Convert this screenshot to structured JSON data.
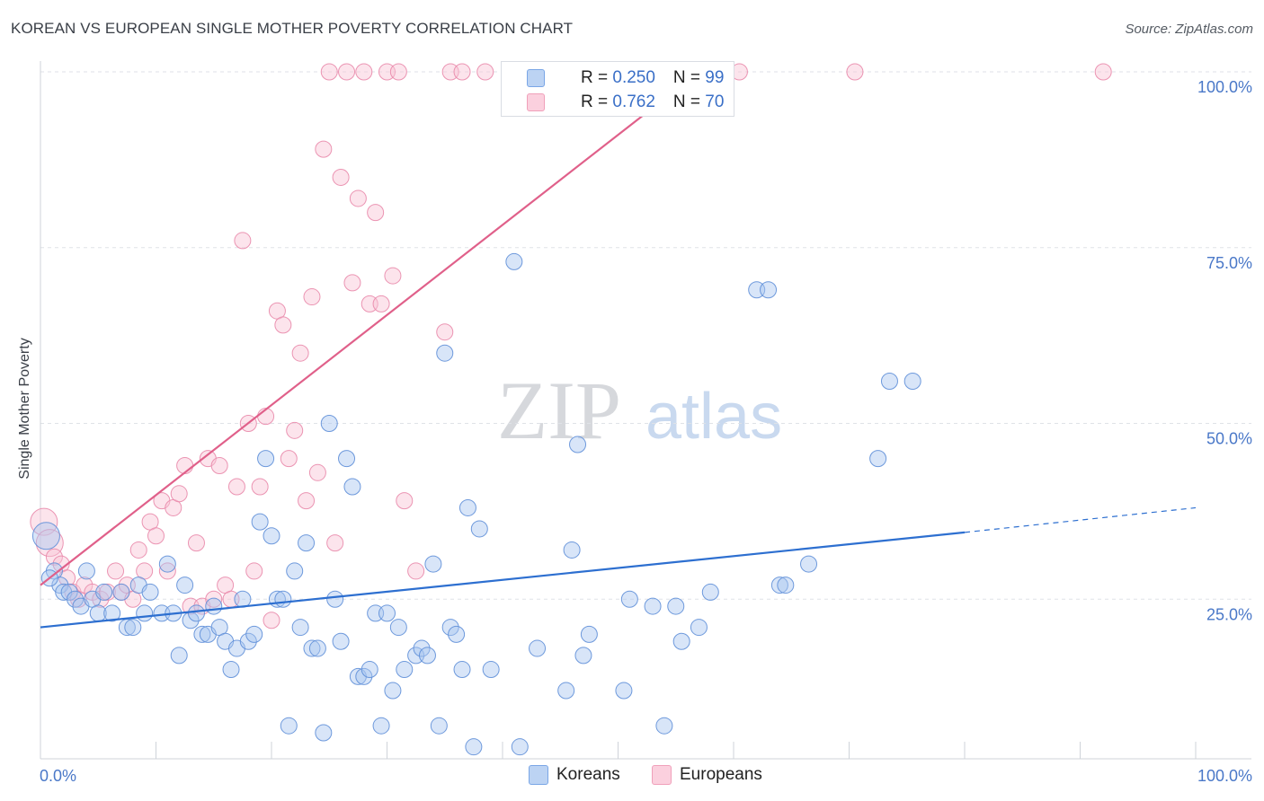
{
  "title": "KOREAN VS EUROPEAN SINGLE MOTHER POVERTY CORRELATION CHART",
  "source": "Source: ZipAtlas.com",
  "watermark": {
    "zip": "ZIP",
    "atlas": "atlas"
  },
  "legend": {
    "rows": [
      {
        "r_label": "R = ",
        "r_value": "0.250",
        "n_label": "N = ",
        "n_value": "99"
      },
      {
        "r_label": "R = ",
        "r_value": "0.762",
        "n_label": "N = ",
        "n_value": "70"
      }
    ]
  },
  "chart_data": {
    "type": "scatter",
    "ylabel": "Single Mother Poverty",
    "x_tick_labels": [
      "0.0%",
      "100.0%"
    ],
    "y_tick_labels": [
      "25.0%",
      "50.0%",
      "75.0%",
      "100.0%"
    ],
    "xlim": [
      0,
      100
    ],
    "ylim": [
      0,
      100
    ],
    "grid": "horizontal dashed",
    "legend_position": "top-center",
    "series": [
      {
        "name": "Koreans",
        "color": "#7aa6e6",
        "r": "0.250",
        "n": "99",
        "trend": {
          "x0": 0,
          "y0": 21,
          "x1": 80,
          "y1": 34.5,
          "dashed_to_x": 100,
          "dashed_to_y": 38
        },
        "points": [
          [
            0.5,
            34
          ],
          [
            1.2,
            29
          ],
          [
            1.7,
            27
          ],
          [
            2.0,
            26
          ],
          [
            2.5,
            26
          ],
          [
            3.0,
            25
          ],
          [
            3.5,
            24
          ],
          [
            4.0,
            29
          ],
          [
            4.5,
            25
          ],
          [
            5.0,
            23
          ],
          [
            5.5,
            26
          ],
          [
            6.2,
            23
          ],
          [
            7.0,
            26
          ],
          [
            7.5,
            21
          ],
          [
            8.0,
            21
          ],
          [
            8.5,
            27
          ],
          [
            9.0,
            23
          ],
          [
            9.5,
            26
          ],
          [
            10.5,
            23
          ],
          [
            11.0,
            30
          ],
          [
            11.5,
            23
          ],
          [
            12.0,
            17
          ],
          [
            12.5,
            27
          ],
          [
            13.0,
            22
          ],
          [
            13.5,
            23
          ],
          [
            14.0,
            20
          ],
          [
            14.5,
            20
          ],
          [
            15.0,
            24
          ],
          [
            15.5,
            21
          ],
          [
            16.0,
            19
          ],
          [
            16.5,
            15
          ],
          [
            17.0,
            18
          ],
          [
            17.5,
            25
          ],
          [
            18.0,
            19
          ],
          [
            18.5,
            20
          ],
          [
            19.0,
            36
          ],
          [
            19.5,
            45
          ],
          [
            20.0,
            34
          ],
          [
            20.5,
            25
          ],
          [
            21.0,
            25
          ],
          [
            21.5,
            7
          ],
          [
            22.0,
            29
          ],
          [
            22.5,
            21
          ],
          [
            23.0,
            33
          ],
          [
            23.5,
            18
          ],
          [
            24.0,
            18
          ],
          [
            24.5,
            6
          ],
          [
            25.0,
            50
          ],
          [
            25.5,
            25
          ],
          [
            26.0,
            19
          ],
          [
            26.5,
            45
          ],
          [
            27.0,
            41
          ],
          [
            27.5,
            14
          ],
          [
            28.0,
            14
          ],
          [
            28.5,
            15
          ],
          [
            29.0,
            23
          ],
          [
            29.5,
            7
          ],
          [
            30.0,
            23
          ],
          [
            30.5,
            12
          ],
          [
            31.0,
            21
          ],
          [
            31.5,
            15
          ],
          [
            32.5,
            17
          ],
          [
            33.0,
            18
          ],
          [
            33.5,
            17
          ],
          [
            34.0,
            30
          ],
          [
            34.5,
            7
          ],
          [
            35.0,
            60
          ],
          [
            35.5,
            21
          ],
          [
            36.0,
            20
          ],
          [
            36.5,
            15
          ],
          [
            37.0,
            38
          ],
          [
            37.5,
            4
          ],
          [
            38.0,
            35
          ],
          [
            39.0,
            15
          ],
          [
            41.0,
            73
          ],
          [
            41.5,
            4
          ],
          [
            43.0,
            18
          ],
          [
            45.5,
            12
          ],
          [
            46.0,
            32
          ],
          [
            46.5,
            47
          ],
          [
            47.0,
            17
          ],
          [
            47.5,
            20
          ],
          [
            50.5,
            12
          ],
          [
            51.0,
            25
          ],
          [
            53.0,
            24
          ],
          [
            54.0,
            7
          ],
          [
            55.0,
            24
          ],
          [
            55.5,
            19
          ],
          [
            57.0,
            21
          ],
          [
            58.0,
            26
          ],
          [
            62.0,
            69
          ],
          [
            63.0,
            69
          ],
          [
            64.0,
            27
          ],
          [
            64.5,
            27
          ],
          [
            66.5,
            30
          ],
          [
            72.5,
            45
          ],
          [
            73.5,
            56
          ],
          [
            75.5,
            56
          ],
          [
            0.8,
            28
          ]
        ]
      },
      {
        "name": "Europeans",
        "color": "#f0a0ba",
        "r": "0.762",
        "n": "70",
        "trend": {
          "x0": 0,
          "y0": 27,
          "x1": 57,
          "y1": 100
        },
        "points": [
          [
            0.3,
            36
          ],
          [
            0.8,
            33
          ],
          [
            1.2,
            31
          ],
          [
            1.8,
            30
          ],
          [
            2.3,
            28
          ],
          [
            2.8,
            26
          ],
          [
            3.3,
            25
          ],
          [
            3.8,
            27
          ],
          [
            4.5,
            26
          ],
          [
            5.2,
            25
          ],
          [
            5.8,
            26
          ],
          [
            6.5,
            29
          ],
          [
            7.0,
            26
          ],
          [
            7.5,
            27
          ],
          [
            8.0,
            25
          ],
          [
            8.5,
            32
          ],
          [
            9.0,
            29
          ],
          [
            9.5,
            36
          ],
          [
            10.0,
            34
          ],
          [
            10.5,
            39
          ],
          [
            11.0,
            29
          ],
          [
            11.5,
            38
          ],
          [
            12.0,
            40
          ],
          [
            12.5,
            44
          ],
          [
            13.0,
            24
          ],
          [
            13.5,
            33
          ],
          [
            14.0,
            24
          ],
          [
            14.5,
            45
          ],
          [
            15.0,
            25
          ],
          [
            15.5,
            44
          ],
          [
            16.0,
            27
          ],
          [
            16.5,
            25
          ],
          [
            17.0,
            41
          ],
          [
            17.5,
            76
          ],
          [
            18.0,
            50
          ],
          [
            18.5,
            29
          ],
          [
            19.0,
            41
          ],
          [
            19.5,
            51
          ],
          [
            20.0,
            22
          ],
          [
            20.5,
            66
          ],
          [
            21.0,
            64
          ],
          [
            21.5,
            45
          ],
          [
            22.0,
            49
          ],
          [
            22.5,
            60
          ],
          [
            23.0,
            39
          ],
          [
            23.5,
            68
          ],
          [
            24.0,
            43
          ],
          [
            24.5,
            89
          ],
          [
            25.0,
            100
          ],
          [
            25.5,
            33
          ],
          [
            26.0,
            85
          ],
          [
            26.5,
            100
          ],
          [
            27.0,
            70
          ],
          [
            27.5,
            82
          ],
          [
            28.0,
            100
          ],
          [
            28.5,
            67
          ],
          [
            29.0,
            80
          ],
          [
            29.5,
            67
          ],
          [
            30.0,
            100
          ],
          [
            30.5,
            71
          ],
          [
            31.0,
            100
          ],
          [
            31.5,
            39
          ],
          [
            32.5,
            29
          ],
          [
            35.0,
            63
          ],
          [
            35.5,
            100
          ],
          [
            36.5,
            100
          ],
          [
            38.5,
            100
          ],
          [
            60.5,
            100
          ],
          [
            70.5,
            100
          ],
          [
            92.0,
            100
          ]
        ]
      }
    ]
  }
}
